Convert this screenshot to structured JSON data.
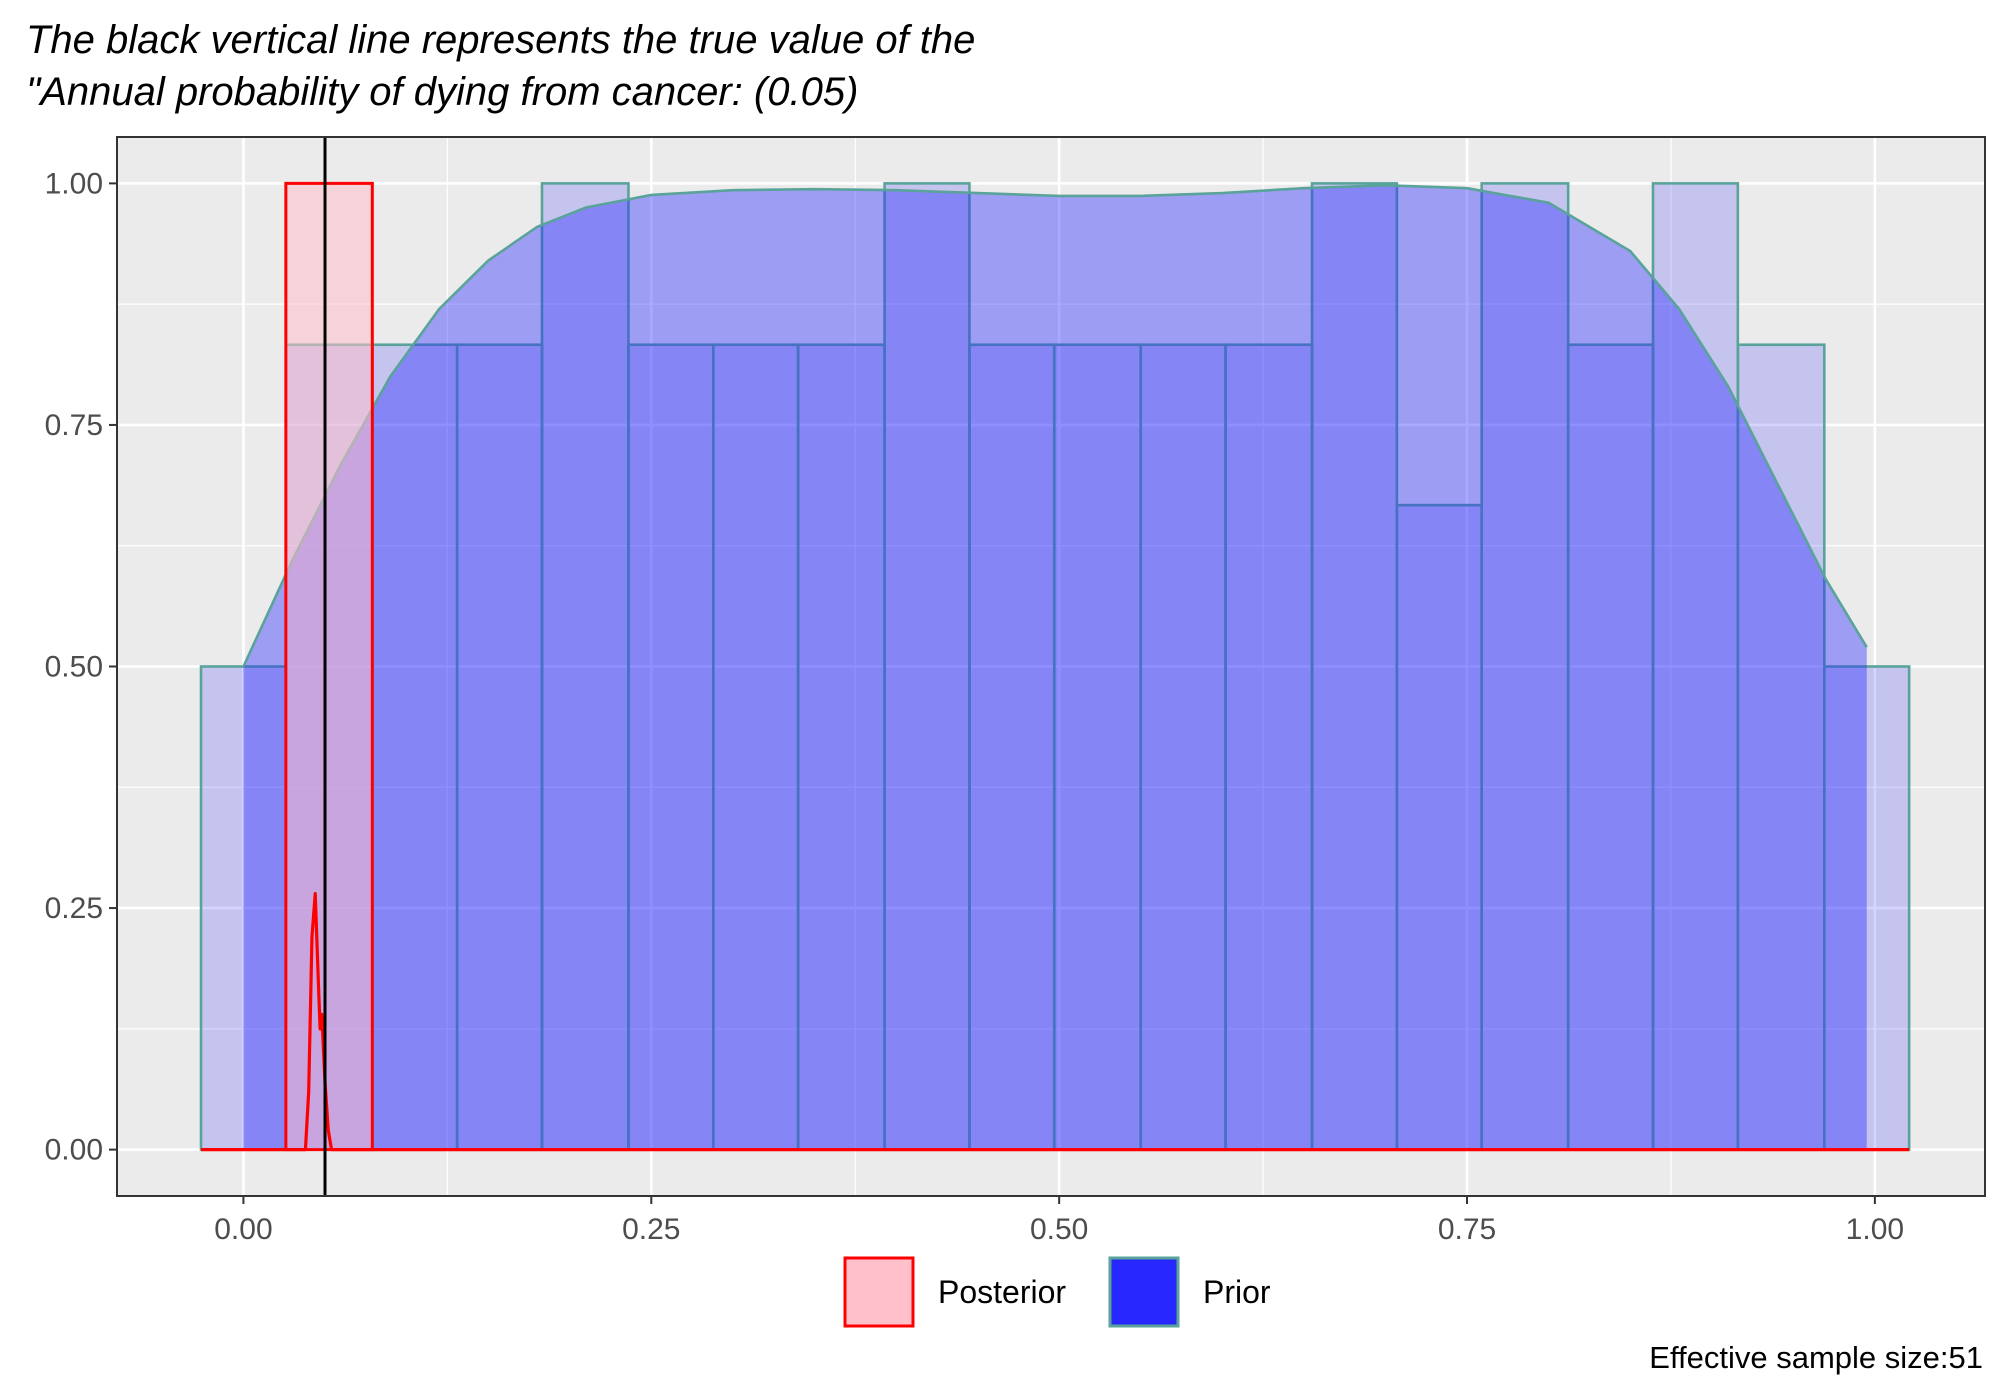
{
  "title_lines": [
    "The black vertical line represents the true value of the",
    "\"Annual probability of dying from cancer: (0.05)"
  ],
  "caption": "Effective sample size:51",
  "colors": {
    "panel": "#ebebeb",
    "grid": "#ffffff",
    "prior_fill": "#2727ff",
    "prior_outline": "#5aa39a",
    "posterior_fill": "#ffc0cb",
    "posterior_outline": "#ff0000",
    "true_value_line": "#000000"
  },
  "chart_data": {
    "type": "histogram",
    "xlim": [
      -0.0775,
      1.0675
    ],
    "ylim": [
      -0.048,
      1.048
    ],
    "x_ticks": [
      0.0,
      0.25,
      0.5,
      0.75,
      1.0
    ],
    "x_tick_labels": [
      "0.00",
      "0.25",
      "0.50",
      "0.75",
      "1.00"
    ],
    "y_ticks": [
      0.0,
      0.25,
      0.5,
      0.75,
      1.0
    ],
    "y_tick_labels": [
      "0.00",
      "0.25",
      "0.50",
      "0.75",
      "1.00"
    ],
    "grid": true,
    "true_value": 0.05,
    "legend": {
      "position": "bottom",
      "entries": [
        {
          "label": "Posterior",
          "series": "posterior"
        },
        {
          "label": "Prior",
          "series": "prior"
        }
      ]
    },
    "series": [
      {
        "name": "Prior",
        "kind": "histogram",
        "bins": [
          {
            "x0": -0.026,
            "x1": 0.026,
            "y": 0.5
          },
          {
            "x0": 0.026,
            "x1": 0.079,
            "y": 0.833
          },
          {
            "x0": 0.079,
            "x1": 0.131,
            "y": 0.833
          },
          {
            "x0": 0.131,
            "x1": 0.183,
            "y": 0.833
          },
          {
            "x0": 0.183,
            "x1": 0.236,
            "y": 1.0
          },
          {
            "x0": 0.236,
            "x1": 0.288,
            "y": 0.833
          },
          {
            "x0": 0.288,
            "x1": 0.34,
            "y": 0.833
          },
          {
            "x0": 0.34,
            "x1": 0.393,
            "y": 0.833
          },
          {
            "x0": 0.393,
            "x1": 0.445,
            "y": 1.0
          },
          {
            "x0": 0.445,
            "x1": 0.497,
            "y": 0.833
          },
          {
            "x0": 0.497,
            "x1": 0.55,
            "y": 0.833
          },
          {
            "x0": 0.55,
            "x1": 0.602,
            "y": 0.833
          },
          {
            "x0": 0.602,
            "x1": 0.655,
            "y": 0.833
          },
          {
            "x0": 0.655,
            "x1": 0.707,
            "y": 1.0
          },
          {
            "x0": 0.707,
            "x1": 0.759,
            "y": 0.667
          },
          {
            "x0": 0.759,
            "x1": 0.812,
            "y": 1.0
          },
          {
            "x0": 0.812,
            "x1": 0.864,
            "y": 0.833
          },
          {
            "x0": 0.864,
            "x1": 0.916,
            "y": 1.0
          },
          {
            "x0": 0.916,
            "x1": 0.969,
            "y": 0.833
          },
          {
            "x0": 0.969,
            "x1": 1.021,
            "y": 0.5
          }
        ]
      },
      {
        "name": "Prior",
        "kind": "density",
        "x": [
          0.0,
          0.03,
          0.06,
          0.09,
          0.12,
          0.15,
          0.18,
          0.21,
          0.25,
          0.3,
          0.35,
          0.4,
          0.45,
          0.5,
          0.55,
          0.6,
          0.65,
          0.7,
          0.75,
          0.8,
          0.85,
          0.88,
          0.91,
          0.94,
          0.97,
          0.995
        ],
        "y": [
          0.5,
          0.61,
          0.71,
          0.8,
          0.87,
          0.92,
          0.955,
          0.975,
          0.988,
          0.993,
          0.994,
          0.993,
          0.99,
          0.987,
          0.987,
          0.99,
          0.995,
          0.998,
          0.995,
          0.98,
          0.93,
          0.87,
          0.79,
          0.69,
          0.59,
          0.52
        ]
      },
      {
        "name": "Posterior",
        "kind": "histogram",
        "bins": [
          {
            "x0": 0.026,
            "x1": 0.079,
            "y": 1.0
          }
        ]
      },
      {
        "name": "Posterior",
        "kind": "density",
        "x": [
          -0.026,
          0.038,
          0.04,
          0.042,
          0.044,
          0.046,
          0.047,
          0.048,
          0.05,
          0.052,
          0.054,
          1.021
        ],
        "y": [
          0.0,
          0.0,
          0.06,
          0.22,
          0.265,
          0.17,
          0.125,
          0.14,
          0.07,
          0.02,
          0.0,
          0.0
        ]
      }
    ]
  }
}
